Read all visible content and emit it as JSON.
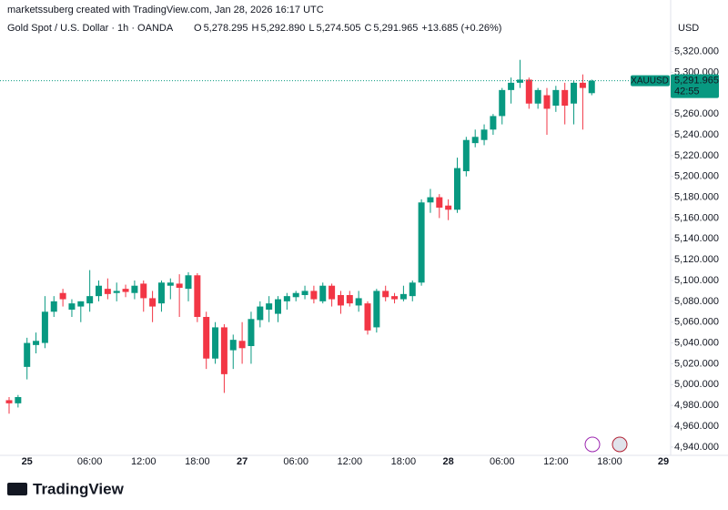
{
  "header": {
    "credit": "marketssuberg created with TradingView.com, Jan 28, 2026 16:17 UTC",
    "symbol": "Gold Spot / U.S. Dollar · 1h · OANDA",
    "ohlc": [
      {
        "label": "O",
        "value": "5,278.295"
      },
      {
        "label": "H",
        "value": "5,292.890"
      },
      {
        "label": "L",
        "value": "5,274.505"
      },
      {
        "label": "C",
        "value": "5,291.965"
      }
    ],
    "change": "+13.685 (+0.26%)",
    "currency": "USD"
  },
  "footer": {
    "logo": "TradingView"
  },
  "chart_data": {
    "type": "candlestick",
    "up_color": "#089981",
    "down_color": "#f23645",
    "categories": [
      null,
      null,
      "25",
      null,
      null,
      null,
      null,
      null,
      null,
      "06:00",
      null,
      null,
      null,
      null,
      null,
      "12:00",
      null,
      null,
      null,
      null,
      null,
      "18:00",
      null,
      null,
      null,
      null,
      "27",
      null,
      null,
      null,
      null,
      null,
      "06:00",
      null,
      null,
      null,
      null,
      null,
      "12:00",
      null,
      null,
      null,
      null,
      null,
      "18:00",
      null,
      null,
      null,
      null,
      "28",
      null,
      null,
      null,
      null,
      null,
      "06:00",
      null,
      null,
      null,
      null,
      null,
      "12:00",
      null,
      null,
      null,
      null,
      null,
      "18:00",
      null,
      null,
      null,
      null,
      null,
      "29"
    ],
    "open": [
      4985,
      4982,
      5017,
      5038,
      5040,
      5070,
      5088,
      5072,
      5075,
      5078,
      5085,
      5092,
      5088,
      5092,
      5088,
      5097,
      5083,
      5078,
      5095,
      5097,
      5092,
      5105,
      5065,
      5025,
      5055,
      5033,
      5042,
      5037,
      5062,
      5072,
      5068,
      5080,
      5084,
      5086,
      5090,
      5080,
      5095,
      5086,
      5086,
      5076,
      5078,
      5055,
      5090,
      5085,
      5082,
      5085,
      5098,
      5175,
      5180,
      5172,
      5168,
      5205,
      5232,
      5235,
      5245,
      5258,
      5283,
      5290,
      5293,
      5270,
      5278,
      5268,
      5283,
      5270,
      5290,
      5280,
      null,
      null,
      null,
      null,
      null,
      null,
      null,
      null
    ],
    "high": [
      4988,
      4990,
      5045,
      5050,
      5085,
      5085,
      5092,
      5082,
      5080,
      5110,
      5100,
      5102,
      5098,
      5096,
      5100,
      5100,
      5090,
      5100,
      5102,
      5106,
      5108,
      5107,
      5070,
      5060,
      5058,
      5048,
      5060,
      5070,
      5080,
      5085,
      5085,
      5088,
      5090,
      5095,
      5095,
      5098,
      5097,
      5090,
      5090,
      5090,
      5080,
      5092,
      5095,
      5088,
      5095,
      5100,
      5178,
      5188,
      5183,
      5178,
      5218,
      5238,
      5245,
      5250,
      5260,
      5285,
      5295,
      5312,
      5295,
      5285,
      5285,
      5287,
      5290,
      5292,
      5298,
      5293,
      null,
      null,
      null,
      null,
      null,
      null,
      null,
      null
    ],
    "low": [
      4972,
      4978,
      5005,
      5030,
      5035,
      5065,
      5075,
      5065,
      5060,
      5070,
      5080,
      5082,
      5080,
      5084,
      5082,
      5070,
      5060,
      5070,
      5082,
      5065,
      5080,
      5060,
      5015,
      5020,
      4992,
      5015,
      5020,
      5020,
      5055,
      5060,
      5060,
      5072,
      5080,
      5082,
      5078,
      5078,
      5075,
      5068,
      5075,
      5070,
      5048,
      5050,
      5080,
      5078,
      5080,
      5080,
      5095,
      5165,
      5160,
      5158,
      5165,
      5200,
      5228,
      5230,
      5240,
      5250,
      5270,
      5285,
      5265,
      5265,
      5240,
      5262,
      5250,
      5250,
      5245,
      5278,
      null,
      null,
      null,
      null,
      null,
      null,
      null,
      null
    ],
    "close": [
      4982,
      4988,
      5040,
      5042,
      5070,
      5080,
      5082,
      5078,
      5080,
      5085,
      5095,
      5087,
      5090,
      5089,
      5095,
      5083,
      5075,
      5098,
      5098,
      5093,
      5105,
      5065,
      5025,
      5055,
      5010,
      5043,
      5035,
      5063,
      5075,
      5078,
      5082,
      5085,
      5088,
      5090,
      5082,
      5095,
      5082,
      5076,
      5078,
      5083,
      5052,
      5090,
      5084,
      5082,
      5087,
      5098,
      5175,
      5180,
      5170,
      5168,
      5208,
      5235,
      5238,
      5245,
      5258,
      5283,
      5290,
      5293,
      5270,
      5283,
      5265,
      5283,
      5268,
      5290,
      5285,
      5291.965,
      null,
      null,
      null,
      null,
      null,
      null,
      null,
      null
    ],
    "ylim": [
      4932,
      5352
    ],
    "yticks": [
      {
        "value": 4940,
        "label": "4,940.000"
      },
      {
        "value": 4960,
        "label": "4,960.000"
      },
      {
        "value": 4980,
        "label": "4,980.000"
      },
      {
        "value": 5000,
        "label": "5,000.000"
      },
      {
        "value": 5020,
        "label": "5,020.000"
      },
      {
        "value": 5040,
        "label": "5,040.000"
      },
      {
        "value": 5060,
        "label": "5,060.000"
      },
      {
        "value": 5080,
        "label": "5,080.000"
      },
      {
        "value": 5100,
        "label": "5,100.000"
      },
      {
        "value": 5120,
        "label": "5,120.000"
      },
      {
        "value": 5140,
        "label": "5,140.000"
      },
      {
        "value": 5160,
        "label": "5,160.000"
      },
      {
        "value": 5180,
        "label": "5,180.000"
      },
      {
        "value": 5200,
        "label": "5,200.000"
      },
      {
        "value": 5220,
        "label": "5,220.000"
      },
      {
        "value": 5240,
        "label": "5,240.000"
      },
      {
        "value": 5260,
        "label": "5,260.000"
      },
      {
        "value": 5280,
        "label": "5,280.000"
      },
      {
        "value": 5300,
        "label": "5,300.000"
      },
      {
        "value": 5320,
        "label": "5,320.000"
      }
    ],
    "grid": false,
    "last_price": {
      "value": 5291.965,
      "label": "5,291.965",
      "symbol": "XAUUSD",
      "countdown": "42:55"
    }
  }
}
